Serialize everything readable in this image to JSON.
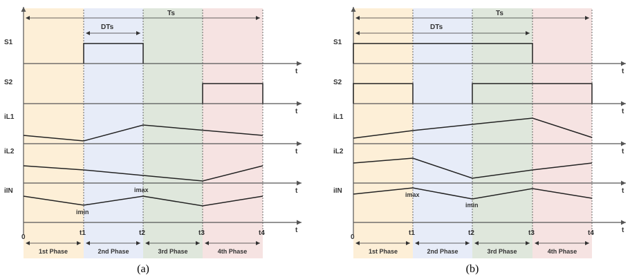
{
  "colors": {
    "phase_fills": [
      "#fdefd7",
      "#e7ecf8",
      "#dfe7dc",
      "#f6e3e2"
    ],
    "axis": "#555555",
    "signal": "#222222"
  },
  "panels": [
    {
      "caption": "(a)",
      "ts_label": "Ts",
      "dts_label": "DTs",
      "row_labels": [
        "S1",
        "S2",
        "iL1",
        "iL2",
        "iIN"
      ],
      "axis_symbol": "t",
      "time_ticks": [
        "0",
        "t1",
        "t2",
        "t3",
        "t4"
      ],
      "phases": [
        "1st Phase",
        "2nd Phase",
        "3rd Phase",
        "4th Phase"
      ],
      "extremum_labels": {
        "imax": "imax",
        "imin": "imin"
      }
    },
    {
      "caption": "(b)",
      "ts_label": "Ts",
      "dts_label": "DTs",
      "row_labels": [
        "S1",
        "S2",
        "iL1",
        "iL2",
        "iIN"
      ],
      "axis_symbol": "t",
      "time_ticks": [
        "0",
        "t1",
        "t2",
        "t3",
        "t4"
      ],
      "phases": [
        "1st Phase",
        "2nd Phase",
        "3rd Phase",
        "4th Phase"
      ],
      "extremum_labels": {
        "imax": "imax",
        "imin": "imin"
      }
    }
  ]
}
